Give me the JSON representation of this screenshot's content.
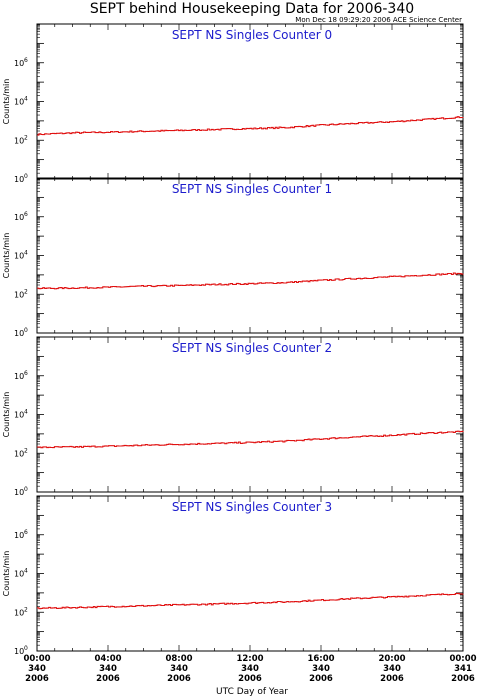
{
  "header": {
    "title": "SEPT behind Housekeeping Data for 2006-340",
    "timestamp": "Mon Dec 18 09:29:20 2006 ACE Science Center"
  },
  "colors": {
    "series": "#e01010",
    "panel_title": "#1c1ccc",
    "frame": "#000000"
  },
  "chart_data": {
    "type": "line",
    "xlabel": "UTC Day of Year",
    "x_range_hours": [
      0,
      24
    ],
    "x_ticks": [
      {
        "time": "00:00",
        "doy": "340",
        "year": "2006"
      },
      {
        "time": "04:00",
        "doy": "340",
        "year": "2006"
      },
      {
        "time": "08:00",
        "doy": "340",
        "year": "2006"
      },
      {
        "time": "12:00",
        "doy": "340",
        "year": "2006"
      },
      {
        "time": "16:00",
        "doy": "340",
        "year": "2006"
      },
      {
        "time": "20:00",
        "doy": "340",
        "year": "2006"
      },
      {
        "time": "00:00",
        "doy": "341",
        "year": "2006"
      }
    ],
    "y_scale": "log",
    "y_range": [
      1,
      100000000
    ],
    "y_ticks": [
      {
        "base": "10",
        "exp": "0",
        "value": 1
      },
      {
        "base": "10",
        "exp": "2",
        "value": 100
      },
      {
        "base": "10",
        "exp": "4",
        "value": 10000
      },
      {
        "base": "10",
        "exp": "6",
        "value": 1000000
      }
    ],
    "panels": [
      {
        "title": "SEPT NS Singles Counter 0",
        "ylabel": "Counts/min",
        "hours": [
          0,
          2,
          4,
          6,
          8,
          10,
          12,
          14,
          16,
          18,
          20,
          22,
          24
        ],
        "values": [
          200,
          240,
          260,
          290,
          320,
          360,
          400,
          450,
          600,
          750,
          900,
          1200,
          1600
        ]
      },
      {
        "title": "SEPT NS Singles Counter 1",
        "ylabel": "Counts/min",
        "hours": [
          0,
          2,
          4,
          6,
          8,
          10,
          12,
          14,
          16,
          18,
          20,
          22,
          24
        ],
        "values": [
          200,
          210,
          230,
          260,
          280,
          320,
          350,
          400,
          520,
          650,
          800,
          1000,
          1200
        ]
      },
      {
        "title": "SEPT NS Singles Counter 2",
        "ylabel": "Counts/min",
        "hours": [
          0,
          2,
          4,
          6,
          8,
          10,
          12,
          14,
          16,
          18,
          20,
          22,
          24
        ],
        "values": [
          200,
          210,
          230,
          260,
          290,
          320,
          360,
          420,
          550,
          700,
          850,
          1100,
          1300
        ]
      },
      {
        "title": "SEPT NS Singles Counter 3",
        "ylabel": "Counts/min",
        "hours": [
          0,
          2,
          4,
          6,
          8,
          10,
          12,
          14,
          16,
          18,
          20,
          22,
          24
        ],
        "values": [
          160,
          175,
          195,
          215,
          240,
          265,
          300,
          345,
          420,
          520,
          620,
          760,
          950
        ]
      }
    ]
  }
}
